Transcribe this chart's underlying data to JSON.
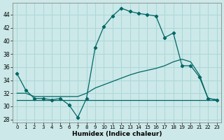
{
  "xlabel": "Humidex (Indice chaleur)",
  "xlim": [
    -0.5,
    23.5
  ],
  "ylim": [
    27.5,
    45.8
  ],
  "yticks": [
    28,
    30,
    32,
    34,
    36,
    38,
    40,
    42,
    44
  ],
  "xticks": [
    0,
    1,
    2,
    3,
    4,
    5,
    6,
    7,
    8,
    9,
    10,
    11,
    12,
    13,
    14,
    15,
    16,
    17,
    18,
    19,
    20,
    21,
    22,
    23
  ],
  "bg_color": "#cce8e8",
  "grid_color": "#aad8d8",
  "line_color": "#006666",
  "x": [
    0,
    1,
    2,
    3,
    4,
    5,
    6,
    7,
    8,
    9,
    10,
    11,
    12,
    13,
    14,
    15,
    16,
    17,
    18,
    19,
    20,
    21,
    22,
    23
  ],
  "y_main": [
    35.0,
    32.5,
    31.2,
    31.2,
    31.0,
    31.2,
    30.2,
    28.3,
    31.2,
    39.0,
    42.2,
    43.8,
    45.0,
    44.5,
    44.2,
    44.0,
    43.8,
    40.5,
    41.2,
    36.2,
    36.2,
    34.5,
    31.2,
    31.0
  ],
  "y_slope": [
    32.0,
    32.0,
    31.5,
    31.5,
    31.5,
    31.5,
    31.5,
    31.5,
    32.0,
    32.8,
    33.3,
    33.8,
    34.3,
    34.8,
    35.2,
    35.5,
    35.8,
    36.2,
    36.8,
    37.2,
    36.8,
    34.8,
    31.2,
    31.0
  ],
  "y_flat": [
    31.0,
    31.0,
    31.0,
    31.0,
    31.0,
    31.0,
    31.0,
    31.0,
    31.0,
    31.0,
    31.0,
    31.0,
    31.0,
    31.0,
    31.0,
    31.0,
    31.0,
    31.0,
    31.0,
    31.0,
    31.0,
    31.0,
    31.0,
    31.0
  ]
}
